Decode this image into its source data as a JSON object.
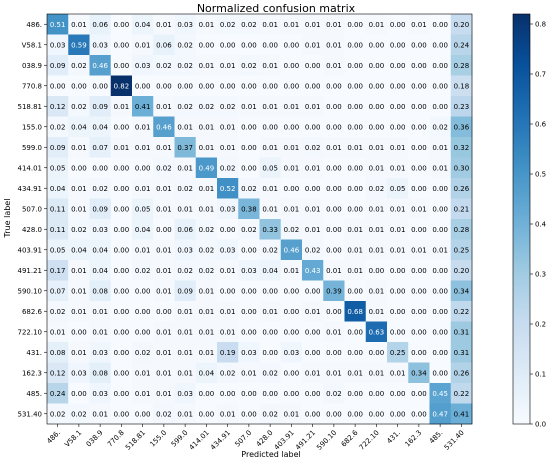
{
  "chart_data": {
    "type": "heatmap",
    "title": "Normalized confusion matrix",
    "xlabel": "Predicted label",
    "ylabel": "True label",
    "row_labels": [
      "486.",
      "V58.1",
      "038.9",
      "770.8",
      "518.81",
      "155.0",
      "599.0",
      "414.01",
      "434.91",
      "507.0",
      "428.0",
      "403.91",
      "491.21",
      "590.10",
      "682.6",
      "722.10",
      "431.",
      "162.3",
      "485.",
      "531.40"
    ],
    "col_labels": [
      "486.",
      "V58.1",
      "038.9",
      "770.8",
      "518.81",
      "155.0",
      "599.0",
      "414.01",
      "434.91",
      "507.0",
      "428.0",
      "403.91",
      "491.21",
      "590.10",
      "682.6",
      "722.10",
      "431.",
      "162.3",
      "485.",
      "531.40"
    ],
    "values": [
      [
        0.51,
        0.01,
        0.06,
        0.0,
        0.04,
        0.01,
        0.03,
        0.01,
        0.02,
        0.02,
        0.01,
        0.01,
        0.01,
        0.01,
        0.0,
        0.01,
        0.0,
        0.01,
        0.0,
        0.2
      ],
      [
        0.03,
        0.59,
        0.03,
        0.0,
        0.01,
        0.06,
        0.02,
        0.0,
        0.0,
        0.0,
        0.0,
        0.0,
        0.01,
        0.01,
        0.0,
        0.0,
        0.0,
        0.0,
        0.0,
        0.24
      ],
      [
        0.09,
        0.02,
        0.46,
        0.0,
        0.03,
        0.02,
        0.02,
        0.01,
        0.01,
        0.02,
        0.01,
        0.0,
        0.0,
        0.01,
        0.0,
        0.0,
        0.0,
        0.0,
        0.0,
        0.28
      ],
      [
        0.0,
        0.0,
        0.0,
        0.82,
        0.0,
        0.0,
        0.0,
        0.0,
        0.0,
        0.0,
        0.0,
        0.0,
        0.0,
        0.0,
        0.0,
        0.0,
        0.0,
        0.0,
        0.0,
        0.18
      ],
      [
        0.12,
        0.02,
        0.09,
        0.01,
        0.41,
        0.01,
        0.02,
        0.02,
        0.02,
        0.01,
        0.01,
        0.01,
        0.01,
        0.0,
        0.0,
        0.0,
        0.0,
        0.0,
        0.0,
        0.23
      ],
      [
        0.02,
        0.04,
        0.04,
        0.0,
        0.01,
        0.46,
        0.01,
        0.01,
        0.01,
        0.0,
        0.0,
        0.0,
        0.0,
        0.0,
        0.0,
        0.0,
        0.0,
        0.0,
        0.02,
        0.36
      ],
      [
        0.09,
        0.01,
        0.07,
        0.01,
        0.01,
        0.01,
        0.37,
        0.01,
        0.01,
        0.0,
        0.01,
        0.01,
        0.02,
        0.01,
        0.01,
        0.01,
        0.01,
        0.0,
        0.01,
        0.32
      ],
      [
        0.05,
        0.0,
        0.0,
        0.0,
        0.0,
        0.02,
        0.01,
        0.49,
        0.02,
        0.0,
        0.05,
        0.01,
        0.01,
        0.0,
        0.0,
        0.01,
        0.01,
        0.0,
        0.01,
        0.3
      ],
      [
        0.04,
        0.01,
        0.02,
        0.0,
        0.01,
        0.01,
        0.02,
        0.01,
        0.52,
        0.02,
        0.01,
        0.0,
        0.0,
        0.0,
        0.0,
        0.02,
        0.05,
        0.0,
        0.0,
        0.26
      ],
      [
        0.11,
        0.01,
        0.09,
        0.0,
        0.05,
        0.01,
        0.01,
        0.01,
        0.03,
        0.38,
        0.01,
        0.01,
        0.01,
        0.0,
        0.0,
        0.01,
        0.01,
        0.01,
        0.0,
        0.21
      ],
      [
        0.11,
        0.02,
        0.03,
        0.0,
        0.04,
        0.0,
        0.06,
        0.02,
        0.0,
        0.02,
        0.33,
        0.02,
        0.01,
        0.0,
        0.01,
        0.01,
        0.01,
        0.0,
        0.0,
        0.28
      ],
      [
        0.05,
        0.04,
        0.04,
        0.0,
        0.01,
        0.01,
        0.03,
        0.02,
        0.03,
        0.0,
        0.02,
        0.46,
        0.02,
        0.0,
        0.01,
        0.01,
        0.01,
        0.01,
        0.01,
        0.25
      ],
      [
        0.17,
        0.01,
        0.04,
        0.0,
        0.02,
        0.01,
        0.02,
        0.02,
        0.01,
        0.03,
        0.04,
        0.01,
        0.43,
        0.01,
        0.01,
        0.0,
        0.0,
        0.0,
        0.0,
        0.2
      ],
      [
        0.07,
        0.01,
        0.08,
        0.0,
        0.0,
        0.01,
        0.09,
        0.01,
        0.0,
        0.0,
        0.0,
        0.0,
        0.0,
        0.39,
        0.0,
        0.01,
        0.0,
        0.0,
        0.0,
        0.34
      ],
      [
        0.02,
        0.01,
        0.01,
        0.0,
        0.0,
        0.0,
        0.01,
        0.01,
        0.01,
        0.0,
        0.01,
        0.0,
        0.01,
        0.0,
        0.68,
        0.01,
        0.0,
        0.0,
        0.0,
        0.22
      ],
      [
        0.01,
        0.0,
        0.01,
        0.0,
        0.0,
        0.01,
        0.01,
        0.01,
        0.01,
        0.0,
        0.0,
        0.0,
        0.0,
        0.01,
        0.0,
        0.63,
        0.0,
        0.0,
        0.0,
        0.31
      ],
      [
        0.08,
        0.01,
        0.03,
        0.0,
        0.02,
        0.01,
        0.01,
        0.01,
        0.19,
        0.03,
        0.0,
        0.03,
        0.0,
        0.0,
        0.0,
        0.0,
        0.25,
        0.0,
        0.0,
        0.31
      ],
      [
        0.12,
        0.03,
        0.08,
        0.0,
        0.01,
        0.01,
        0.01,
        0.04,
        0.02,
        0.01,
        0.02,
        0.0,
        0.01,
        0.01,
        0.01,
        0.01,
        0.01,
        0.34,
        0.0,
        0.26
      ],
      [
        0.24,
        0.0,
        0.03,
        0.0,
        0.01,
        0.01,
        0.03,
        0.0,
        0.0,
        0.0,
        0.0,
        0.0,
        0.0,
        0.02,
        0.0,
        0.0,
        0.0,
        0.0,
        0.45,
        0.22
      ],
      [
        0.02,
        0.02,
        0.01,
        0.0,
        0.0,
        0.02,
        0.01,
        0.0,
        0.01,
        0.0,
        0.02,
        0.01,
        0.0,
        0.0,
        0.0,
        0.0,
        0.0,
        0.0,
        0.47,
        0.41
      ]
    ],
    "value_format": "0.00",
    "vmin": 0.0,
    "vmax": 0.82,
    "colormap": "Blues",
    "colorbar_ticks": [
      "0.0",
      "0.1",
      "0.2",
      "0.3",
      "0.4",
      "0.5",
      "0.6",
      "0.7",
      "0.8"
    ],
    "colorbar_tick_values": [
      0.0,
      0.1,
      0.2,
      0.3,
      0.4,
      0.5,
      0.6,
      0.7,
      0.8
    ],
    "text_color_dark": "#000000",
    "text_color_light": "#ffffff",
    "grid": false
  }
}
